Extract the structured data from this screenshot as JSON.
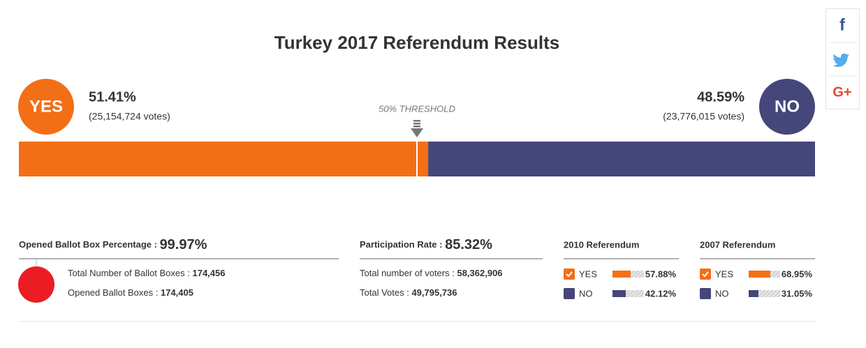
{
  "title": "Turkey 2017 Referendum Results",
  "threshold": {
    "value": 50,
    "label": "50% THRESHOLD"
  },
  "yes": {
    "label": "YES",
    "color": "#f36f16",
    "percent": {
      "value": 51.41,
      "label": "51.41%"
    },
    "votes": "(25,154,724 votes)"
  },
  "no": {
    "label": "NO",
    "color": "#45467a",
    "percent": {
      "value": 48.59,
      "label": "48.59%"
    },
    "votes": "(23,776,015 votes)"
  },
  "ballot_boxes": {
    "label": "Opened Ballot Box Percentage :",
    "percent": "99.97%",
    "total_label": "Total Number of Ballot Boxes :",
    "total": "174,456",
    "opened_label": "Opened Ballot Boxes :",
    "opened": "174,405"
  },
  "participation": {
    "label": "Participation Rate :",
    "percent": "85.32%",
    "voters_label": "Total number of voters :",
    "voters": "58,362,906",
    "votes_label": "Total Votes :",
    "votes": "49,795,736"
  },
  "referendums": [
    {
      "title": "2010 Referendum",
      "rows": [
        {
          "label": "YES",
          "color": "#f36f16",
          "value": {
            "value": 57.88,
            "label": "57.88%"
          }
        },
        {
          "label": "NO",
          "color": "#45467a",
          "value": {
            "value": 42.12,
            "label": "42.12%"
          }
        }
      ]
    },
    {
      "title": "2007 Referendum",
      "rows": [
        {
          "label": "YES",
          "color": "#f36f16",
          "value": {
            "value": 68.95,
            "label": "68.95%"
          }
        },
        {
          "label": "NO",
          "color": "#45467a",
          "value": {
            "value": 31.05,
            "label": "31.05%"
          }
        }
      ]
    }
  ],
  "share": {
    "facebook": "f",
    "google": "G+"
  }
}
